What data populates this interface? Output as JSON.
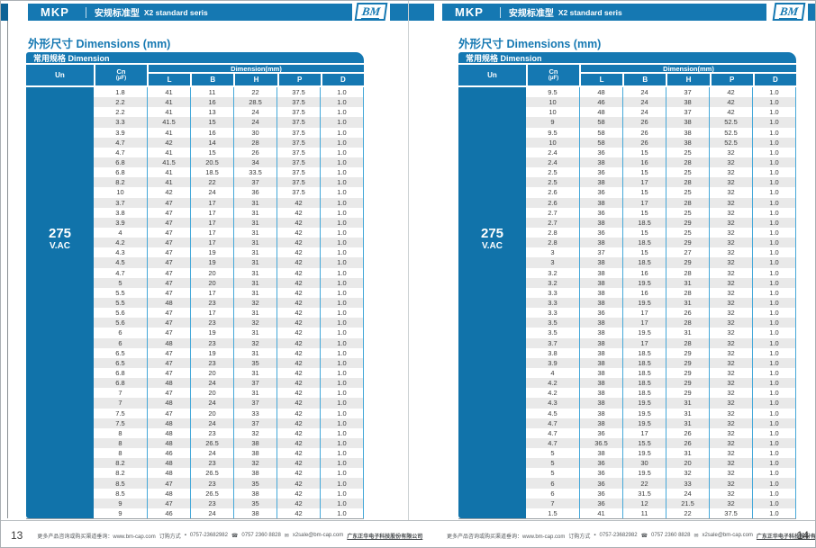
{
  "colors": {
    "primary_blue": "#1578b2",
    "dark_blue": "#0e6396",
    "un_column_blue": "#1173aa",
    "row_alt_gray": "#e9e9e9",
    "column_divider_blue": "#45a8d9"
  },
  "pages": [
    {
      "page_number": "13",
      "header": {
        "series": "MKP",
        "title_cn": "安规标准型",
        "title_en": "X2 standard seris",
        "logo": "BM"
      },
      "section_title": "外形尺寸 Dimensions (mm)",
      "table": {
        "caption": "常用规格 Dimension",
        "un_header": "Un",
        "cn_header": "Cn",
        "cn_unit": "(μF)",
        "dim_header": "Dimension(mm)",
        "columns": [
          "L",
          "B",
          "H",
          "P",
          "D"
        ],
        "un_value": "275",
        "un_unit": "V.AC",
        "rows": [
          [
            "1.8",
            "41",
            "11",
            "22",
            "37.5",
            "1.0"
          ],
          [
            "2.2",
            "41",
            "16",
            "28.5",
            "37.5",
            "1.0"
          ],
          [
            "2.2",
            "41",
            "13",
            "24",
            "37.5",
            "1.0"
          ],
          [
            "3.3",
            "41.5",
            "15",
            "24",
            "37.5",
            "1.0"
          ],
          [
            "3.9",
            "41",
            "16",
            "30",
            "37.5",
            "1.0"
          ],
          [
            "4.7",
            "42",
            "14",
            "28",
            "37.5",
            "1.0"
          ],
          [
            "4.7",
            "41",
            "15",
            "26",
            "37.5",
            "1.0"
          ],
          [
            "6.8",
            "41.5",
            "20.5",
            "34",
            "37.5",
            "1.0"
          ],
          [
            "6.8",
            "41",
            "18.5",
            "33.5",
            "37.5",
            "1.0"
          ],
          [
            "8.2",
            "41",
            "22",
            "37",
            "37.5",
            "1.0"
          ],
          [
            "10",
            "42",
            "24",
            "36",
            "37.5",
            "1.0"
          ],
          [
            "3.7",
            "47",
            "17",
            "31",
            "42",
            "1.0"
          ],
          [
            "3.8",
            "47",
            "17",
            "31",
            "42",
            "1.0"
          ],
          [
            "3.9",
            "47",
            "17",
            "31",
            "42",
            "1.0"
          ],
          [
            "4",
            "47",
            "17",
            "31",
            "42",
            "1.0"
          ],
          [
            "4.2",
            "47",
            "17",
            "31",
            "42",
            "1.0"
          ],
          [
            "4.3",
            "47",
            "19",
            "31",
            "42",
            "1.0"
          ],
          [
            "4.5",
            "47",
            "19",
            "31",
            "42",
            "1.0"
          ],
          [
            "4.7",
            "47",
            "20",
            "31",
            "42",
            "1.0"
          ],
          [
            "5",
            "47",
            "20",
            "31",
            "42",
            "1.0"
          ],
          [
            "5.5",
            "47",
            "17",
            "31",
            "42",
            "1.0"
          ],
          [
            "5.5",
            "48",
            "23",
            "32",
            "42",
            "1.0"
          ],
          [
            "5.6",
            "47",
            "17",
            "31",
            "42",
            "1.0"
          ],
          [
            "5.6",
            "47",
            "23",
            "32",
            "42",
            "1.0"
          ],
          [
            "6",
            "47",
            "19",
            "31",
            "42",
            "1.0"
          ],
          [
            "6",
            "48",
            "23",
            "32",
            "42",
            "1.0"
          ],
          [
            "6.5",
            "47",
            "19",
            "31",
            "42",
            "1.0"
          ],
          [
            "6.5",
            "47",
            "23",
            "35",
            "42",
            "1.0"
          ],
          [
            "6.8",
            "47",
            "20",
            "31",
            "42",
            "1.0"
          ],
          [
            "6.8",
            "48",
            "24",
            "37",
            "42",
            "1.0"
          ],
          [
            "7",
            "47",
            "20",
            "31",
            "42",
            "1.0"
          ],
          [
            "7",
            "48",
            "24",
            "37",
            "42",
            "1.0"
          ],
          [
            "7.5",
            "47",
            "20",
            "33",
            "42",
            "1.0"
          ],
          [
            "7.5",
            "48",
            "24",
            "37",
            "42",
            "1.0"
          ],
          [
            "8",
            "48",
            "23",
            "32",
            "42",
            "1.0"
          ],
          [
            "8",
            "48",
            "26.5",
            "38",
            "42",
            "1.0"
          ],
          [
            "8",
            "46",
            "24",
            "38",
            "42",
            "1.0"
          ],
          [
            "8.2",
            "48",
            "23",
            "32",
            "42",
            "1.0"
          ],
          [
            "8.2",
            "48",
            "26.5",
            "38",
            "42",
            "1.0"
          ],
          [
            "8.5",
            "47",
            "23",
            "35",
            "42",
            "1.0"
          ],
          [
            "8.5",
            "48",
            "26.5",
            "38",
            "42",
            "1.0"
          ],
          [
            "9",
            "47",
            "23",
            "35",
            "42",
            "1.0"
          ],
          [
            "9",
            "46",
            "24",
            "38",
            "42",
            "1.0"
          ]
        ]
      },
      "footer": {
        "info": "更多产品咨询或购买渠道垂询：www.bm-cap.com",
        "order_label": "订购方式",
        "fax": "0757-23682982",
        "tel": "0757 2360 8828",
        "email": "x2sale@bm-cap.com",
        "company": "广东正华电子科技股份有限公司"
      }
    },
    {
      "page_number": "14",
      "header": {
        "series": "MKP",
        "title_cn": "安规标准型",
        "title_en": "X2 standard seris",
        "logo": "BM"
      },
      "section_title": "外形尺寸 Dimensions (mm)",
      "table": {
        "caption": "常用规格 Dimension",
        "un_header": "Un",
        "cn_header": "Cn",
        "cn_unit": "(μF)",
        "dim_header": "Dimension(mm)",
        "columns": [
          "L",
          "B",
          "H",
          "P",
          "D"
        ],
        "un_value": "275",
        "un_unit": "V.AC",
        "rows": [
          [
            "9.5",
            "48",
            "24",
            "37",
            "42",
            "1.0"
          ],
          [
            "10",
            "46",
            "24",
            "38",
            "42",
            "1.0"
          ],
          [
            "10",
            "48",
            "24",
            "37",
            "42",
            "1.0"
          ],
          [
            "9",
            "58",
            "26",
            "38",
            "52.5",
            "1.0"
          ],
          [
            "9.5",
            "58",
            "26",
            "38",
            "52.5",
            "1.0"
          ],
          [
            "10",
            "58",
            "26",
            "38",
            "52.5",
            "1.0"
          ],
          [
            "2.4",
            "36",
            "15",
            "25",
            "32",
            "1.0"
          ],
          [
            "2.4",
            "38",
            "16",
            "28",
            "32",
            "1.0"
          ],
          [
            "2.5",
            "36",
            "15",
            "25",
            "32",
            "1.0"
          ],
          [
            "2.5",
            "38",
            "17",
            "28",
            "32",
            "1.0"
          ],
          [
            "2.6",
            "36",
            "15",
            "25",
            "32",
            "1.0"
          ],
          [
            "2.6",
            "38",
            "17",
            "28",
            "32",
            "1.0"
          ],
          [
            "2.7",
            "36",
            "15",
            "25",
            "32",
            "1.0"
          ],
          [
            "2.7",
            "38",
            "18.5",
            "29",
            "32",
            "1.0"
          ],
          [
            "2.8",
            "36",
            "15",
            "25",
            "32",
            "1.0"
          ],
          [
            "2.8",
            "38",
            "18.5",
            "29",
            "32",
            "1.0"
          ],
          [
            "3",
            "37",
            "15",
            "27",
            "32",
            "1.0"
          ],
          [
            "3",
            "38",
            "18.5",
            "29",
            "32",
            "1.0"
          ],
          [
            "3.2",
            "38",
            "16",
            "28",
            "32",
            "1.0"
          ],
          [
            "3.2",
            "38",
            "19.5",
            "31",
            "32",
            "1.0"
          ],
          [
            "3.3",
            "38",
            "16",
            "28",
            "32",
            "1.0"
          ],
          [
            "3.3",
            "38",
            "19.5",
            "31",
            "32",
            "1.0"
          ],
          [
            "3.3",
            "36",
            "17",
            "26",
            "32",
            "1.0"
          ],
          [
            "3.5",
            "38",
            "17",
            "28",
            "32",
            "1.0"
          ],
          [
            "3.5",
            "38",
            "19.5",
            "31",
            "32",
            "1.0"
          ],
          [
            "3.7",
            "38",
            "17",
            "28",
            "32",
            "1.0"
          ],
          [
            "3.8",
            "38",
            "18.5",
            "29",
            "32",
            "1.0"
          ],
          [
            "3.9",
            "38",
            "18.5",
            "29",
            "32",
            "1.0"
          ],
          [
            "4",
            "38",
            "18.5",
            "29",
            "32",
            "1.0"
          ],
          [
            "4.2",
            "38",
            "18.5",
            "29",
            "32",
            "1.0"
          ],
          [
            "4.2",
            "38",
            "18.5",
            "29",
            "32",
            "1.0"
          ],
          [
            "4.3",
            "38",
            "19.5",
            "31",
            "32",
            "1.0"
          ],
          [
            "4.5",
            "38",
            "19.5",
            "31",
            "32",
            "1.0"
          ],
          [
            "4.7",
            "38",
            "19.5",
            "31",
            "32",
            "1.0"
          ],
          [
            "4.7",
            "36",
            "17",
            "26",
            "32",
            "1.0"
          ],
          [
            "4.7",
            "36.5",
            "15.5",
            "26",
            "32",
            "1.0"
          ],
          [
            "5",
            "38",
            "19.5",
            "31",
            "32",
            "1.0"
          ],
          [
            "5",
            "36",
            "30",
            "20",
            "32",
            "1.0"
          ],
          [
            "5",
            "36",
            "19.5",
            "32",
            "32",
            "1.0"
          ],
          [
            "6",
            "36",
            "22",
            "33",
            "32",
            "1.0"
          ],
          [
            "6",
            "36",
            "31.5",
            "24",
            "32",
            "1.0"
          ],
          [
            "7",
            "36",
            "12",
            "21.5",
            "32",
            "1.0"
          ],
          [
            "1.5",
            "41",
            "11",
            "22",
            "37.5",
            "1.0"
          ]
        ]
      },
      "footer": {
        "info": "更多产品咨询或购买渠道垂询：www.bm-cap.com",
        "order_label": "订购方式",
        "fax": "0757-23682982",
        "tel": "0757 2360 8828",
        "email": "x2sale@bm-cap.com",
        "company": "广东正华电子科技股份有限公司"
      }
    }
  ]
}
